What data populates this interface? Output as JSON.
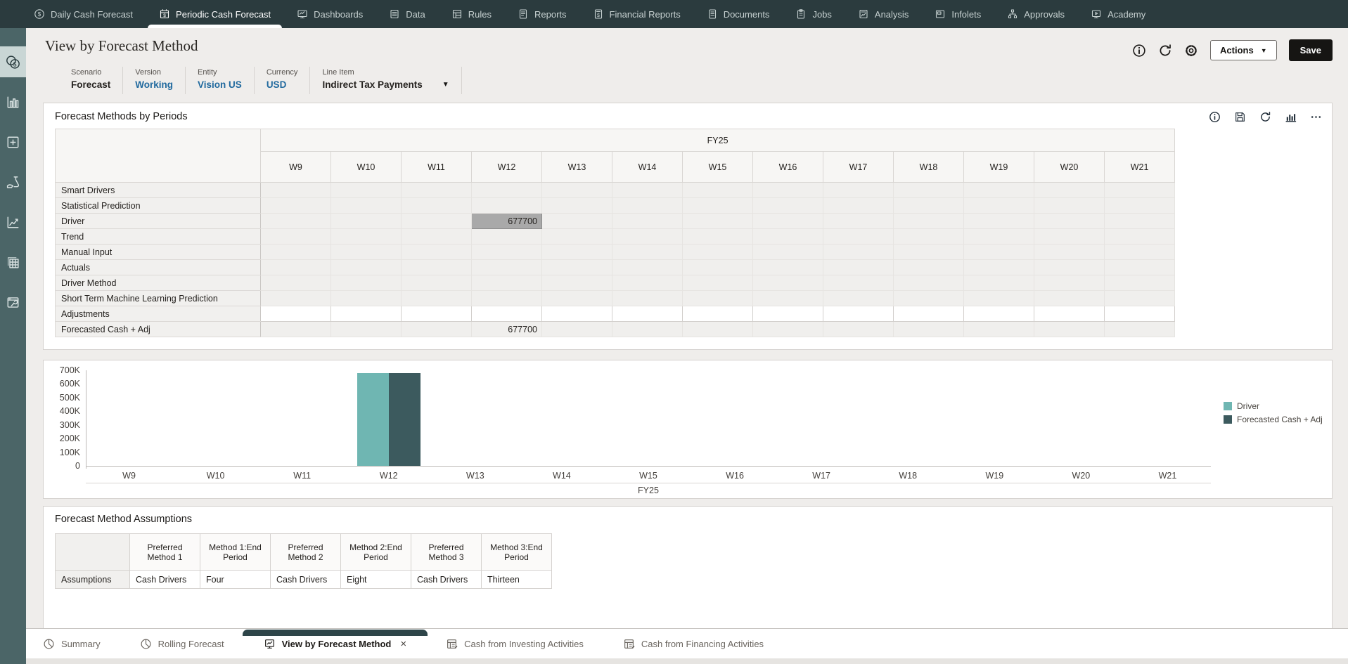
{
  "topnav": {
    "items": [
      {
        "label": "Daily Cash Forecast",
        "icon": "cash-clock-icon",
        "active": false
      },
      {
        "label": "Periodic Cash Forecast",
        "icon": "cash-calendar-icon",
        "active": true
      },
      {
        "label": "Dashboards",
        "icon": "dashboards-icon",
        "active": false
      },
      {
        "label": "Data",
        "icon": "data-icon",
        "active": false
      },
      {
        "label": "Rules",
        "icon": "rules-icon",
        "active": false
      },
      {
        "label": "Reports",
        "icon": "reports-icon",
        "active": false
      },
      {
        "label": "Financial Reports",
        "icon": "financial-reports-icon",
        "active": false
      },
      {
        "label": "Documents",
        "icon": "documents-icon",
        "active": false
      },
      {
        "label": "Jobs",
        "icon": "jobs-icon",
        "active": false
      },
      {
        "label": "Analysis",
        "icon": "analysis-icon",
        "active": false
      },
      {
        "label": "Infolets",
        "icon": "infolets-icon",
        "active": false
      },
      {
        "label": "Approvals",
        "icon": "approvals-icon",
        "active": false
      },
      {
        "label": "Academy",
        "icon": "academy-icon",
        "active": false
      }
    ]
  },
  "sidebar": {
    "items": [
      {
        "name": "cash-coins-icon",
        "active": true
      },
      {
        "name": "bar-chart-icon",
        "active": false
      },
      {
        "name": "plus-square-icon",
        "active": false
      },
      {
        "name": "hand-flask-icon",
        "active": false
      },
      {
        "name": "trend-line-icon",
        "active": false
      },
      {
        "name": "data-grid-icon",
        "active": false
      },
      {
        "name": "tools-icon",
        "active": false
      }
    ]
  },
  "header": {
    "title": "View by Forecast Method",
    "pov": [
      {
        "label": "Scenario",
        "value": "Forecast",
        "link": false,
        "dropdown": false
      },
      {
        "label": "Version",
        "value": "Working",
        "link": true,
        "dropdown": false
      },
      {
        "label": "Entity",
        "value": "Vision US",
        "link": true,
        "dropdown": false
      },
      {
        "label": "Currency",
        "value": "USD",
        "link": true,
        "dropdown": false
      },
      {
        "label": "Line Item",
        "value": "Indirect Tax Payments",
        "link": false,
        "dropdown": true
      }
    ],
    "controls": {
      "icons": [
        "info-icon",
        "refresh-icon",
        "gear-icon"
      ],
      "actions_label": "Actions",
      "save_label": "Save"
    }
  },
  "grid": {
    "title": "Forecast Methods by Periods",
    "toolbar_icons": [
      "info-icon",
      "save-disk-icon",
      "refresh-icon",
      "chart-icon",
      "ellipsis-icon"
    ],
    "year_header": "FY25",
    "columns": [
      "W9",
      "W10",
      "W11",
      "W12",
      "W13",
      "W14",
      "W15",
      "W16",
      "W17",
      "W18",
      "W19",
      "W20",
      "W21"
    ],
    "rows": [
      {
        "label": "Smart Drivers",
        "values": {}
      },
      {
        "label": "Statistical Prediction",
        "values": {}
      },
      {
        "label": "Driver",
        "values": {
          "W12": "677700"
        },
        "selected_cell": "W12"
      },
      {
        "label": "Trend",
        "values": {}
      },
      {
        "label": "Manual Input",
        "values": {}
      },
      {
        "label": "Actuals",
        "values": {}
      },
      {
        "label": "Driver Method",
        "values": {}
      },
      {
        "label": "Short Term Machine Learning Prediction",
        "values": {}
      },
      {
        "label": "Adjustments",
        "values": {},
        "editable": true
      },
      {
        "label": "Forecasted Cash + Adj",
        "values": {
          "W12": "677700"
        }
      }
    ]
  },
  "chart_data": {
    "type": "bar",
    "title": "",
    "categories": [
      "W9",
      "W10",
      "W11",
      "W12",
      "W13",
      "W14",
      "W15",
      "W16",
      "W17",
      "W18",
      "W19",
      "W20",
      "W21"
    ],
    "series": [
      {
        "name": "Driver",
        "color": "#6fb6b2",
        "values": [
          null,
          null,
          null,
          677700,
          null,
          null,
          null,
          null,
          null,
          null,
          null,
          null,
          null
        ]
      },
      {
        "name": "Forecasted Cash + Adj",
        "color": "#3c5a5e",
        "values": [
          null,
          null,
          null,
          677700,
          null,
          null,
          null,
          null,
          null,
          null,
          null,
          null,
          null
        ]
      }
    ],
    "xlabel": "FY25",
    "ylabel": "",
    "ylim": [
      0,
      700000
    ],
    "yticks": [
      "0",
      "100K",
      "200K",
      "300K",
      "400K",
      "500K",
      "600K",
      "700K"
    ],
    "legend_position": "right",
    "grid": false
  },
  "assumptions": {
    "title": "Forecast Method Assumptions",
    "columns": [
      "Preferred Method 1",
      "Method 1:End Period",
      "Preferred Method 2",
      "Method 2:End Period",
      "Preferred Method 3",
      "Method 3:End Period"
    ],
    "row_label": "Assumptions",
    "values": [
      "Cash Drivers",
      "Four",
      "Cash Drivers",
      "Eight",
      "Cash Drivers",
      "Thirteen"
    ]
  },
  "bottom_tabs": {
    "tabs": [
      {
        "label": "Summary",
        "icon": "pie-icon",
        "active": false,
        "closable": false
      },
      {
        "label": "Rolling Forecast",
        "icon": "pie-icon",
        "active": false,
        "closable": false
      },
      {
        "label": "View by Forecast Method",
        "icon": "screen-chart-icon",
        "active": true,
        "closable": true,
        "close_glyph": "×"
      },
      {
        "label": "Cash from Investing Activities",
        "icon": "sheet-calc-icon",
        "active": false,
        "closable": false
      },
      {
        "label": "Cash from Financing Activities",
        "icon": "sheet-calc-icon",
        "active": false,
        "closable": false
      }
    ]
  },
  "colors": {
    "nav_bg": "#2b3b3e",
    "sidebar_bg": "#4b6567",
    "link_blue": "#20699e",
    "bar_driver": "#6fb6b2",
    "bar_forecast": "#3c5a5e",
    "selected_cell": "#a9a9a9",
    "save_button": "#161513"
  }
}
